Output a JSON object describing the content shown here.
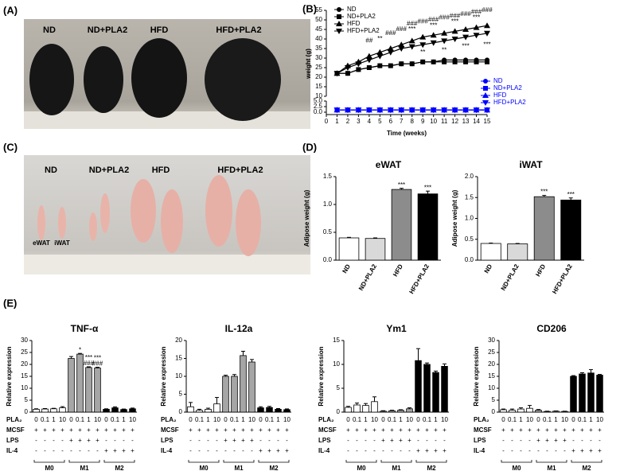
{
  "figure": {
    "panel_labels": [
      "(A)",
      "(B)",
      "(C)",
      "(D)",
      "(E)"
    ],
    "photos": [
      {
        "labels": [
          "ND",
          "ND+PLA2",
          "HFD",
          "HFD+PLA2"
        ]
      },
      {
        "labels": [
          "ND",
          "ND+PLA2",
          "HFD",
          "HFD+PLA2"
        ],
        "tissue_labels": [
          "eWAT",
          "iWAT"
        ]
      }
    ],
    "conditions": {
      "rows": [
        {
          "label": "PLA₂",
          "values": [
            "0",
            "0.1",
            "1",
            "10",
            "0",
            "0.1",
            "1",
            "10",
            "0",
            "0.1",
            "1",
            "10"
          ]
        },
        {
          "label": "MCSF",
          "values": [
            "+",
            "+",
            "+",
            "+",
            "+",
            "+",
            "+",
            "+",
            "+",
            "+",
            "+",
            "+"
          ]
        },
        {
          "label": "LPS",
          "values": [
            "-",
            "-",
            "-",
            "-",
            "+",
            "+",
            "+",
            "+",
            "-",
            "-",
            "-",
            "-"
          ]
        },
        {
          "label": "IL-4",
          "values": [
            "-",
            "-",
            "-",
            "-",
            "-",
            "-",
            "-",
            "-",
            "+",
            "+",
            "+",
            "+"
          ]
        }
      ],
      "groups": [
        "M0",
        "M1",
        "M2"
      ]
    }
  },
  "chart_data": [
    {
      "type": "line",
      "xlabel": "Time (weeks)",
      "ylabel": "weight (g)",
      "x": [
        1,
        2,
        3,
        4,
        5,
        6,
        7,
        8,
        9,
        10,
        11,
        12,
        13,
        14,
        15
      ],
      "xlim": [
        0,
        15
      ],
      "xticks": [
        0,
        1,
        2,
        3,
        4,
        5,
        6,
        7,
        8,
        9,
        10,
        11,
        12,
        13,
        14,
        15
      ],
      "ylim": [
        10,
        55
      ],
      "yticks": [
        10,
        15,
        20,
        25,
        30,
        35,
        40,
        45,
        50,
        55
      ],
      "ylim_lower": [
        0,
        5
      ],
      "yticks_lower": [
        {
          "value": 0,
          "label": "0.0"
        },
        {
          "value": 2.5,
          "label": "2.5"
        },
        {
          "value": 5,
          "label": "5.0"
        }
      ],
      "series": [
        {
          "name": "ND",
          "color": "#000000",
          "marker": "circle",
          "values": [
            22,
            22,
            24,
            25,
            26,
            26,
            27,
            27,
            28,
            28,
            29,
            29,
            29,
            29,
            29
          ]
        },
        {
          "name": "ND+PLA2",
          "color": "#000000",
          "marker": "square",
          "values": [
            22,
            22,
            24,
            25,
            26,
            26,
            27,
            27,
            28,
            28,
            28,
            28,
            28,
            28,
            28
          ]
        },
        {
          "name": "HFD",
          "color": "#000000",
          "marker": "up",
          "values": [
            22,
            26,
            28,
            31,
            33,
            35,
            37,
            39,
            41,
            42,
            43,
            44,
            45,
            46,
            47
          ]
        },
        {
          "name": "HFD+PLA2",
          "color": "#000000",
          "marker": "down",
          "values": [
            22,
            25,
            27,
            29,
            31,
            33,
            35,
            36,
            37,
            38,
            39,
            40,
            41,
            42,
            43
          ]
        }
      ],
      "lower_series": [
        {
          "name": "ND",
          "color": "#0000ff",
          "marker": "circle",
          "values": [
            1,
            1,
            1,
            1,
            1,
            1,
            1,
            1,
            1,
            1,
            1,
            1,
            1,
            1,
            1
          ]
        },
        {
          "name": "ND+PLA2",
          "color": "#0000ff",
          "marker": "square",
          "values": [
            1,
            1,
            1,
            1,
            1,
            1,
            1,
            1,
            1,
            1,
            1,
            1,
            1,
            1,
            1
          ]
        },
        {
          "name": "HFD",
          "color": "#0000ff",
          "marker": "up",
          "values": [
            1,
            1,
            1,
            1,
            1,
            1,
            1,
            1,
            1,
            1,
            1,
            1,
            1,
            1,
            1
          ]
        },
        {
          "name": "HFD+PLA2",
          "color": "#0000ff",
          "marker": "down",
          "values": [
            1,
            1,
            1,
            1,
            1,
            1,
            1,
            1,
            1,
            1,
            1,
            1,
            1,
            1,
            1
          ]
        }
      ],
      "annotations": [
        {
          "x": 4,
          "y": 39,
          "text": "##"
        },
        {
          "x": 5,
          "y": 40,
          "text": "**"
        },
        {
          "x": 6,
          "y": 43,
          "text": "###"
        },
        {
          "x": 7,
          "y": 45,
          "text": "###"
        },
        {
          "x": 8,
          "y": 48,
          "text": "###"
        },
        {
          "x": 9,
          "y": 49,
          "text": "###"
        },
        {
          "x": 10,
          "y": 50,
          "text": "###"
        },
        {
          "x": 11,
          "y": 51,
          "text": "###"
        },
        {
          "x": 12,
          "y": 52,
          "text": "###"
        },
        {
          "x": 13,
          "y": 53,
          "text": "###"
        },
        {
          "x": 14,
          "y": 54,
          "text": "###"
        },
        {
          "x": 15,
          "y": 55,
          "text": "###"
        },
        {
          "x": 8,
          "y": 45,
          "text": "***"
        },
        {
          "x": 10,
          "y": 47,
          "text": "***"
        },
        {
          "x": 12,
          "y": 49,
          "text": "***"
        },
        {
          "x": 14,
          "y": 51,
          "text": "***"
        },
        {
          "x": 9,
          "y": 33,
          "text": "**"
        },
        {
          "x": 11,
          "y": 34,
          "text": "**"
        },
        {
          "x": 13,
          "y": 36,
          "text": "***"
        },
        {
          "x": 15,
          "y": 37,
          "text": "***"
        }
      ]
    },
    {
      "type": "bar",
      "title": "eWAT",
      "ylabel": "Adipose weight (g)",
      "categories": [
        "ND",
        "ND+PLA2",
        "HFD",
        "HFD+PLA2"
      ],
      "values": [
        0.4,
        0.39,
        1.27,
        1.19
      ],
      "errors": [
        0.01,
        0.01,
        0.02,
        0.05
      ],
      "colors": [
        "#ffffff",
        "#d9d9d9",
        "#8c8c8c",
        "#000000"
      ],
      "ylim": [
        0,
        1.5
      ],
      "yticks": [
        {
          "value": 0,
          "label": "0.0"
        },
        {
          "value": 0.5,
          "label": "0.5"
        },
        {
          "value": 1,
          "label": "1.0"
        },
        {
          "value": 1.5,
          "label": "1.5"
        }
      ],
      "significance": [
        {
          "index": 2,
          "text": "***"
        },
        {
          "index": 3,
          "text": "***"
        }
      ]
    },
    {
      "type": "bar",
      "title": "iWAT",
      "ylabel": "Adipose weight (g)",
      "categories": [
        "ND",
        "ND+PLA2",
        "HFD",
        "HFD+PLA2"
      ],
      "values": [
        0.4,
        0.39,
        1.52,
        1.44
      ],
      "errors": [
        0.01,
        0.01,
        0.03,
        0.05
      ],
      "colors": [
        "#ffffff",
        "#d9d9d9",
        "#8c8c8c",
        "#000000"
      ],
      "ylim": [
        0,
        2
      ],
      "yticks": [
        {
          "value": 0,
          "label": "0.0"
        },
        {
          "value": 0.5,
          "label": "0.5"
        },
        {
          "value": 1,
          "label": "1.0"
        },
        {
          "value": 1.5,
          "label": "1.5"
        },
        {
          "value": 2,
          "label": "2.0"
        }
      ],
      "significance": [
        {
          "index": 2,
          "text": "***"
        },
        {
          "index": 3,
          "text": "***"
        }
      ]
    },
    {
      "type": "bar",
      "title": "TNF-α",
      "ylabel": "Relative expression",
      "values": [
        1.2,
        1.3,
        1.4,
        1.8,
        22.5,
        24.3,
        18.7,
        18.5,
        1.2,
        1.8,
        1.1,
        1.4
      ],
      "errors": [
        0.2,
        0.2,
        0.2,
        0.5,
        0.8,
        0.3,
        0.3,
        0.3,
        0.2,
        0.4,
        0.2,
        0.3
      ],
      "colors": [
        "#ffffff",
        "#ffffff",
        "#ffffff",
        "#ffffff",
        "#a6a6a6",
        "#a6a6a6",
        "#a6a6a6",
        "#a6a6a6",
        "#000000",
        "#000000",
        "#000000",
        "#000000"
      ],
      "ylim": [
        0,
        30
      ],
      "yticks": [
        0,
        5,
        10,
        15,
        20,
        25,
        30
      ],
      "significance": [
        {
          "index": 5,
          "text": "*"
        },
        {
          "index": 6,
          "text": "###"
        },
        {
          "index": 6,
          "text": "***"
        },
        {
          "index": 7,
          "text": "###"
        },
        {
          "index": 7,
          "text": "***"
        }
      ]
    },
    {
      "type": "bar",
      "title": "IL-12a",
      "ylabel": "Relative expression",
      "values": [
        1.5,
        0.5,
        0.8,
        2.3,
        10,
        10,
        15.8,
        14,
        1.2,
        1.3,
        0.8,
        0.7
      ],
      "errors": [
        1.2,
        0.3,
        0.3,
        1.8,
        0.3,
        0.5,
        1.2,
        0.7,
        0.3,
        0.3,
        0.2,
        0.2
      ],
      "colors": [
        "#ffffff",
        "#ffffff",
        "#ffffff",
        "#ffffff",
        "#a6a6a6",
        "#a6a6a6",
        "#a6a6a6",
        "#a6a6a6",
        "#000000",
        "#000000",
        "#000000",
        "#000000"
      ],
      "ylim": [
        0,
        20
      ],
      "yticks": [
        0,
        5,
        10,
        15,
        20
      ]
    },
    {
      "type": "bar",
      "title": "Ym1",
      "ylabel": "Relative expression",
      "values": [
        1,
        1.5,
        1.4,
        2.2,
        0.2,
        0.3,
        0.4,
        0.7,
        10.8,
        10,
        8.3,
        9.6
      ],
      "errors": [
        0.2,
        0.4,
        0.4,
        1,
        0.1,
        0.1,
        0.1,
        0.2,
        2.5,
        0.3,
        0.3,
        0.5
      ],
      "colors": [
        "#ffffff",
        "#ffffff",
        "#ffffff",
        "#ffffff",
        "#a6a6a6",
        "#a6a6a6",
        "#a6a6a6",
        "#a6a6a6",
        "#000000",
        "#000000",
        "#000000",
        "#000000"
      ],
      "ylim": [
        0,
        15
      ],
      "yticks": [
        0,
        5,
        10,
        15
      ]
    },
    {
      "type": "bar",
      "title": "CD206",
      "ylabel": "Relative expression",
      "values": [
        1,
        0.8,
        1.3,
        1.6,
        0.8,
        0.3,
        0.4,
        0.3,
        15,
        16,
        16.4,
        15.5
      ],
      "errors": [
        0.3,
        0.5,
        0.5,
        1.2,
        0.3,
        0.1,
        0.1,
        0.1,
        0.3,
        0.5,
        1.4,
        0.3
      ],
      "colors": [
        "#ffffff",
        "#ffffff",
        "#ffffff",
        "#ffffff",
        "#a6a6a6",
        "#a6a6a6",
        "#a6a6a6",
        "#a6a6a6",
        "#000000",
        "#000000",
        "#000000",
        "#000000"
      ],
      "ylim": [
        0,
        30
      ],
      "yticks": [
        0,
        5,
        10,
        15,
        20,
        25,
        30
      ]
    }
  ]
}
